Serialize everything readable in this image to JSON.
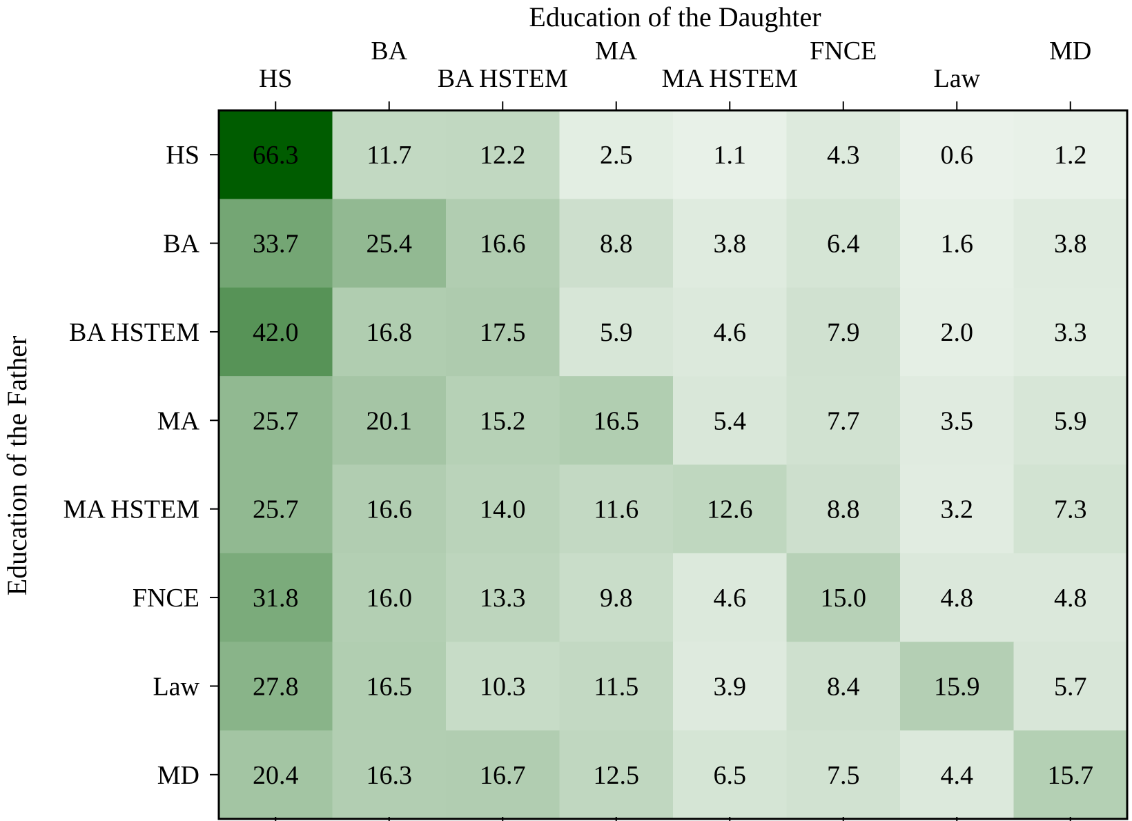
{
  "chart_data": {
    "type": "heatmap",
    "xlabel": "Education of the Daughter",
    "ylabel": "Education of the Father",
    "columns": [
      "HS",
      "BA",
      "BA HSTEM",
      "MA",
      "MA HSTEM",
      "FNCE",
      "Law",
      "MD"
    ],
    "rows": [
      "HS",
      "BA",
      "BA HSTEM",
      "MA",
      "MA HSTEM",
      "FNCE",
      "Law",
      "MD"
    ],
    "values": [
      [
        66.3,
        11.7,
        12.2,
        2.5,
        1.1,
        4.3,
        0.6,
        1.2
      ],
      [
        33.7,
        25.4,
        16.6,
        8.8,
        3.8,
        6.4,
        1.6,
        3.8
      ],
      [
        42.0,
        16.8,
        17.5,
        5.9,
        4.6,
        7.9,
        2.0,
        3.3
      ],
      [
        25.7,
        20.1,
        15.2,
        16.5,
        5.4,
        7.7,
        3.5,
        5.9
      ],
      [
        25.7,
        16.6,
        14.0,
        11.6,
        12.6,
        8.8,
        3.2,
        7.3
      ],
      [
        31.8,
        16.0,
        13.3,
        9.8,
        4.6,
        15.0,
        4.8,
        4.8
      ],
      [
        27.8,
        16.5,
        10.3,
        11.5,
        3.9,
        8.4,
        15.9,
        5.7
      ],
      [
        20.4,
        16.3,
        16.7,
        12.5,
        6.5,
        7.5,
        4.4,
        15.7
      ]
    ],
    "colorscale": {
      "low": "#eaf2ea",
      "high": "#005c00"
    },
    "x_axis_position": "top",
    "grid": false,
    "legend": "none"
  }
}
